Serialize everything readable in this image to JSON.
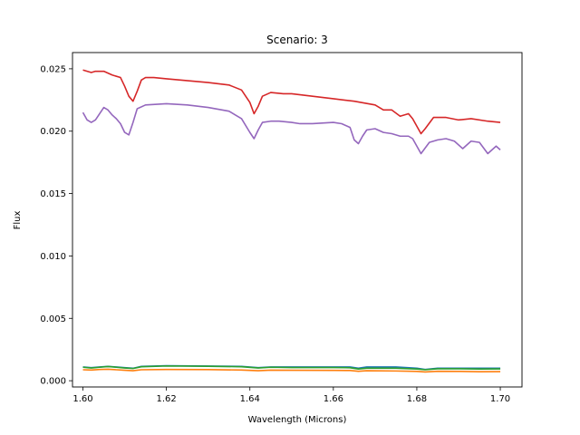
{
  "chart_data": {
    "type": "line",
    "title": "Scenario: 3",
    "xlabel": "Wavelength (Microns)",
    "ylabel": "Flux",
    "xlim": [
      1.5975,
      1.7052
    ],
    "ylim": [
      -0.0005,
      0.0263
    ],
    "xticks": [
      1.6,
      1.62,
      1.64,
      1.66,
      1.68,
      1.7
    ],
    "xtick_labels": [
      "1.60",
      "1.62",
      "1.64",
      "1.66",
      "1.68",
      "1.70"
    ],
    "yticks": [
      0.0,
      0.005,
      0.01,
      0.015,
      0.02,
      0.025
    ],
    "ytick_labels": [
      "0.000",
      "0.005",
      "0.010",
      "0.015",
      "0.020",
      "0.025"
    ],
    "grid": false,
    "legend": false,
    "series": [
      {
        "color": "#1f77b4",
        "points": [
          [
            1.6,
            0.0011
          ],
          [
            1.602,
            0.00105
          ],
          [
            1.604,
            0.0011
          ],
          [
            1.606,
            0.00115
          ],
          [
            1.608,
            0.0011
          ],
          [
            1.61,
            0.00105
          ],
          [
            1.612,
            0.001
          ],
          [
            1.614,
            0.00115
          ],
          [
            1.62,
            0.0012
          ],
          [
            1.63,
            0.00118
          ],
          [
            1.638,
            0.00115
          ],
          [
            1.642,
            0.00105
          ],
          [
            1.645,
            0.0011
          ],
          [
            1.65,
            0.0011
          ],
          [
            1.66,
            0.0011
          ],
          [
            1.664,
            0.0011
          ],
          [
            1.666,
            0.001
          ],
          [
            1.668,
            0.0011
          ],
          [
            1.675,
            0.0011
          ],
          [
            1.68,
            0.001
          ],
          [
            1.682,
            0.0009
          ],
          [
            1.685,
            0.001
          ],
          [
            1.69,
            0.001
          ],
          [
            1.695,
            0.001
          ],
          [
            1.7,
            0.001
          ]
        ]
      },
      {
        "color": "#ff7f0e",
        "points": [
          [
            1.6,
            0.00088
          ],
          [
            1.602,
            0.00086
          ],
          [
            1.604,
            0.0009
          ],
          [
            1.606,
            0.00092
          ],
          [
            1.608,
            0.00088
          ],
          [
            1.61,
            0.00084
          ],
          [
            1.612,
            0.0008
          ],
          [
            1.614,
            0.00088
          ],
          [
            1.62,
            0.0009
          ],
          [
            1.63,
            0.00089
          ],
          [
            1.638,
            0.00086
          ],
          [
            1.642,
            0.0008
          ],
          [
            1.645,
            0.00085
          ],
          [
            1.65,
            0.00084
          ],
          [
            1.66,
            0.00083
          ],
          [
            1.664,
            0.00082
          ],
          [
            1.666,
            0.00076
          ],
          [
            1.668,
            0.0008
          ],
          [
            1.675,
            0.00078
          ],
          [
            1.68,
            0.00075
          ],
          [
            1.682,
            0.0007
          ],
          [
            1.685,
            0.00076
          ],
          [
            1.69,
            0.00075
          ],
          [
            1.695,
            0.00072
          ],
          [
            1.7,
            0.00073
          ]
        ]
      },
      {
        "color": "#2ca02c",
        "points": [
          [
            1.6,
            0.00108
          ],
          [
            1.602,
            0.00102
          ],
          [
            1.604,
            0.00108
          ],
          [
            1.606,
            0.00114
          ],
          [
            1.608,
            0.00108
          ],
          [
            1.61,
            0.00102
          ],
          [
            1.612,
            0.00098
          ],
          [
            1.614,
            0.00112
          ],
          [
            1.62,
            0.00118
          ],
          [
            1.63,
            0.00116
          ],
          [
            1.638,
            0.00112
          ],
          [
            1.642,
            0.00102
          ],
          [
            1.645,
            0.00108
          ],
          [
            1.65,
            0.00106
          ],
          [
            1.66,
            0.00106
          ],
          [
            1.664,
            0.00104
          ],
          [
            1.666,
            0.00094
          ],
          [
            1.668,
            0.001
          ],
          [
            1.675,
            0.001
          ],
          [
            1.68,
            0.00094
          ],
          [
            1.682,
            0.00088
          ],
          [
            1.685,
            0.00096
          ],
          [
            1.69,
            0.00096
          ],
          [
            1.695,
            0.00094
          ],
          [
            1.7,
            0.00095
          ]
        ]
      },
      {
        "color": "#d62728",
        "points": [
          [
            1.6,
            0.0249
          ],
          [
            1.601,
            0.0248
          ],
          [
            1.602,
            0.0247
          ],
          [
            1.603,
            0.0248
          ],
          [
            1.605,
            0.0248
          ],
          [
            1.607,
            0.0245
          ],
          [
            1.609,
            0.0243
          ],
          [
            1.61,
            0.0236
          ],
          [
            1.611,
            0.0228
          ],
          [
            1.612,
            0.0224
          ],
          [
            1.613,
            0.0232
          ],
          [
            1.614,
            0.0241
          ],
          [
            1.615,
            0.0243
          ],
          [
            1.617,
            0.0243
          ],
          [
            1.62,
            0.0242
          ],
          [
            1.63,
            0.0239
          ],
          [
            1.635,
            0.0237
          ],
          [
            1.638,
            0.0233
          ],
          [
            1.64,
            0.0223
          ],
          [
            1.641,
            0.0214
          ],
          [
            1.642,
            0.022
          ],
          [
            1.643,
            0.0228
          ],
          [
            1.645,
            0.0231
          ],
          [
            1.648,
            0.023
          ],
          [
            1.65,
            0.023
          ],
          [
            1.66,
            0.0226
          ],
          [
            1.665,
            0.0224
          ],
          [
            1.67,
            0.0221
          ],
          [
            1.672,
            0.0217
          ],
          [
            1.674,
            0.0217
          ],
          [
            1.676,
            0.0212
          ],
          [
            1.678,
            0.0214
          ],
          [
            1.679,
            0.021
          ],
          [
            1.681,
            0.0198
          ],
          [
            1.682,
            0.0202
          ],
          [
            1.684,
            0.0211
          ],
          [
            1.687,
            0.0211
          ],
          [
            1.69,
            0.0209
          ],
          [
            1.693,
            0.021
          ],
          [
            1.697,
            0.0208
          ],
          [
            1.7,
            0.0207
          ]
        ]
      },
      {
        "color": "#9467bd",
        "points": [
          [
            1.6,
            0.0215
          ],
          [
            1.601,
            0.0209
          ],
          [
            1.602,
            0.0207
          ],
          [
            1.603,
            0.0209
          ],
          [
            1.604,
            0.0214
          ],
          [
            1.605,
            0.0219
          ],
          [
            1.606,
            0.0217
          ],
          [
            1.607,
            0.0213
          ],
          [
            1.608,
            0.021
          ],
          [
            1.609,
            0.0206
          ],
          [
            1.61,
            0.0199
          ],
          [
            1.611,
            0.0197
          ],
          [
            1.612,
            0.0207
          ],
          [
            1.613,
            0.0218
          ],
          [
            1.615,
            0.0221
          ],
          [
            1.62,
            0.0222
          ],
          [
            1.625,
            0.0221
          ],
          [
            1.63,
            0.0219
          ],
          [
            1.635,
            0.0216
          ],
          [
            1.638,
            0.021
          ],
          [
            1.64,
            0.0199
          ],
          [
            1.641,
            0.0194
          ],
          [
            1.642,
            0.0201
          ],
          [
            1.643,
            0.0207
          ],
          [
            1.645,
            0.0208
          ],
          [
            1.647,
            0.0208
          ],
          [
            1.65,
            0.0207
          ],
          [
            1.652,
            0.0206
          ],
          [
            1.655,
            0.0206
          ],
          [
            1.66,
            0.0207
          ],
          [
            1.662,
            0.0206
          ],
          [
            1.664,
            0.0203
          ],
          [
            1.665,
            0.0193
          ],
          [
            1.666,
            0.019
          ],
          [
            1.667,
            0.0196
          ],
          [
            1.668,
            0.0201
          ],
          [
            1.67,
            0.0202
          ],
          [
            1.672,
            0.0199
          ],
          [
            1.674,
            0.0198
          ],
          [
            1.676,
            0.0196
          ],
          [
            1.678,
            0.0196
          ],
          [
            1.679,
            0.0194
          ],
          [
            1.681,
            0.0182
          ],
          [
            1.683,
            0.0191
          ],
          [
            1.685,
            0.0193
          ],
          [
            1.687,
            0.0194
          ],
          [
            1.689,
            0.0192
          ],
          [
            1.691,
            0.0186
          ],
          [
            1.693,
            0.0192
          ],
          [
            1.695,
            0.0191
          ],
          [
            1.697,
            0.0182
          ],
          [
            1.699,
            0.0188
          ],
          [
            1.7,
            0.0185
          ]
        ]
      }
    ]
  }
}
